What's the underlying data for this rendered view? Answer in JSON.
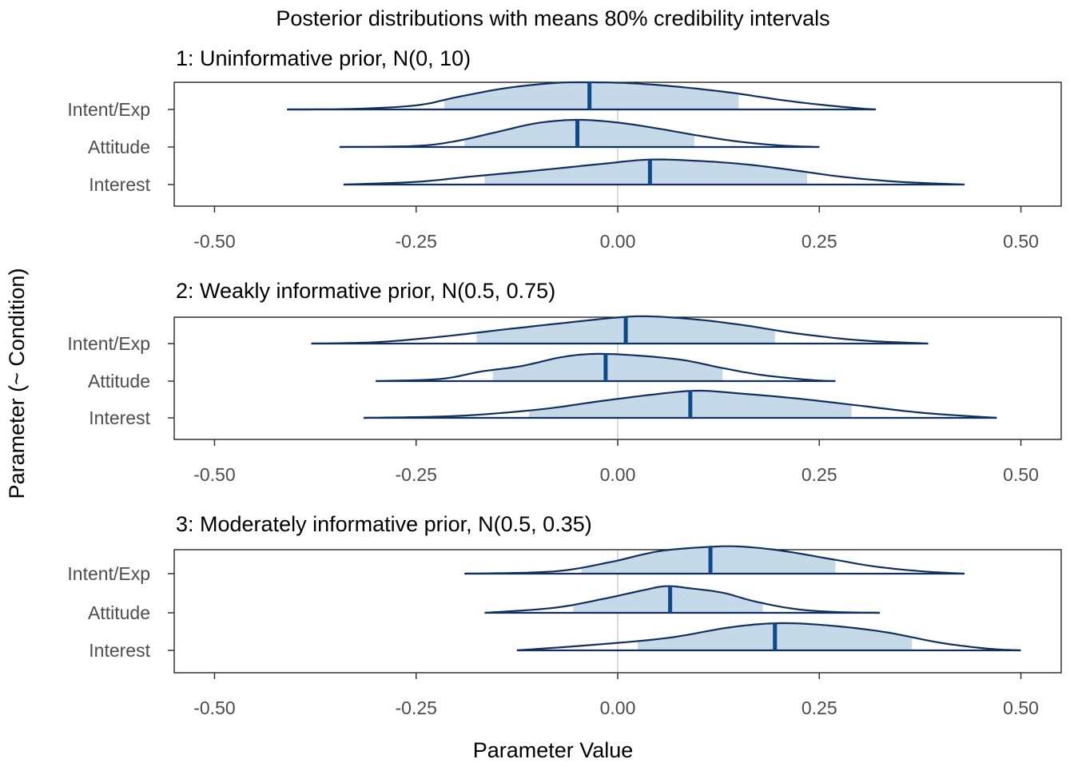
{
  "chart_data": {
    "type": "ridgeline",
    "title": "Posterior distributions with means 80% credibility intervals",
    "xlabel": "Parameter Value",
    "ylabel": "Parameter (~ Condition)",
    "xlim": [
      -0.55,
      0.55
    ],
    "xticks": [
      -0.5,
      -0.25,
      0.0,
      0.25,
      0.5
    ],
    "xtick_labels": [
      "-0.50",
      "-0.25",
      "0.00",
      "0.25",
      "0.50"
    ],
    "reference_line": 0.0,
    "colors": {
      "fill": "#c6d9e9",
      "outline": "#12305f",
      "mean": "#0c4a8c",
      "refline": "#dcdcdc"
    },
    "categories": [
      "Intent/Exp",
      "Attitude",
      "Interest"
    ],
    "panels": [
      {
        "title": "1: Uninformative prior, N(0, 10)",
        "series": [
          {
            "name": "Intent/Exp",
            "mean": -0.035,
            "ci80": [
              -0.215,
              0.15
            ],
            "range": [
              -0.41,
              0.32
            ],
            "density": [
              [
                -0.41,
                0.0
              ],
              [
                -0.33,
                0.02
              ],
              [
                -0.25,
                0.15
              ],
              [
                -0.2,
                0.45
              ],
              [
                -0.14,
                0.78
              ],
              [
                -0.08,
                0.97
              ],
              [
                -0.035,
                1.0
              ],
              [
                0.02,
                0.96
              ],
              [
                0.08,
                0.82
              ],
              [
                0.14,
                0.62
              ],
              [
                0.2,
                0.36
              ],
              [
                0.25,
                0.18
              ],
              [
                0.3,
                0.04
              ],
              [
                0.32,
                0.0
              ]
            ]
          },
          {
            "name": "Attitude",
            "mean": -0.05,
            "ci80": [
              -0.19,
              0.095
            ],
            "range": [
              -0.345,
              0.25
            ],
            "density": [
              [
                -0.345,
                0.0
              ],
              [
                -0.25,
                0.04
              ],
              [
                -0.2,
                0.22
              ],
              [
                -0.15,
                0.55
              ],
              [
                -0.1,
                0.88
              ],
              [
                -0.05,
                1.0
              ],
              [
                0.0,
                0.9
              ],
              [
                0.05,
                0.68
              ],
              [
                0.1,
                0.42
              ],
              [
                0.15,
                0.2
              ],
              [
                0.2,
                0.06
              ],
              [
                0.25,
                0.0
              ]
            ]
          },
          {
            "name": "Interest",
            "mean": 0.04,
            "ci80": [
              -0.165,
              0.235
            ],
            "range": [
              -0.34,
              0.43
            ],
            "density": [
              [
                -0.34,
                0.0
              ],
              [
                -0.25,
                0.1
              ],
              [
                -0.18,
                0.3
              ],
              [
                -0.1,
                0.52
              ],
              [
                -0.02,
                0.76
              ],
              [
                0.04,
                0.92
              ],
              [
                0.1,
                0.87
              ],
              [
                0.16,
                0.74
              ],
              [
                0.22,
                0.52
              ],
              [
                0.28,
                0.28
              ],
              [
                0.35,
                0.1
              ],
              [
                0.43,
                0.0
              ]
            ]
          }
        ]
      },
      {
        "title": "2: Weakly informative prior, N(0.5, 0.75)",
        "series": [
          {
            "name": "Intent/Exp",
            "mean": 0.01,
            "ci80": [
              -0.175,
              0.195
            ],
            "range": [
              -0.38,
              0.385
            ],
            "density": [
              [
                -0.38,
                0.0
              ],
              [
                -0.3,
                0.05
              ],
              [
                -0.22,
                0.25
              ],
              [
                -0.14,
                0.52
              ],
              [
                -0.06,
                0.78
              ],
              [
                0.0,
                0.96
              ],
              [
                0.04,
                1.0
              ],
              [
                0.1,
                0.88
              ],
              [
                0.16,
                0.66
              ],
              [
                0.22,
                0.38
              ],
              [
                0.3,
                0.12
              ],
              [
                0.385,
                0.0
              ]
            ]
          },
          {
            "name": "Attitude",
            "mean": -0.015,
            "ci80": [
              -0.155,
              0.13
            ],
            "range": [
              -0.3,
              0.27
            ],
            "density": [
              [
                -0.3,
                0.0
              ],
              [
                -0.22,
                0.08
              ],
              [
                -0.17,
                0.35
              ],
              [
                -0.12,
                0.55
              ],
              [
                -0.07,
                0.88
              ],
              [
                -0.03,
                1.0
              ],
              [
                0.02,
                0.95
              ],
              [
                0.08,
                0.78
              ],
              [
                0.13,
                0.48
              ],
              [
                0.18,
                0.22
              ],
              [
                0.24,
                0.04
              ],
              [
                0.27,
                0.0
              ]
            ]
          },
          {
            "name": "Interest",
            "mean": 0.09,
            "ci80": [
              -0.11,
              0.29
            ],
            "range": [
              -0.315,
              0.47
            ],
            "density": [
              [
                -0.315,
                0.0
              ],
              [
                -0.2,
                0.07
              ],
              [
                -0.1,
                0.3
              ],
              [
                -0.02,
                0.62
              ],
              [
                0.05,
                0.88
              ],
              [
                0.1,
                1.0
              ],
              [
                0.15,
                0.9
              ],
              [
                0.22,
                0.72
              ],
              [
                0.3,
                0.45
              ],
              [
                0.38,
                0.18
              ],
              [
                0.47,
                0.0
              ]
            ]
          }
        ]
      },
      {
        "title": "3: Moderately informative prior, N(0.5, 0.35)",
        "series": [
          {
            "name": "Intent/Exp",
            "mean": 0.115,
            "ci80": [
              -0.045,
              0.27
            ],
            "range": [
              -0.19,
              0.43
            ],
            "density": [
              [
                -0.19,
                0.0
              ],
              [
                -0.08,
                0.08
              ],
              [
                -0.01,
                0.42
              ],
              [
                0.05,
                0.82
              ],
              [
                0.11,
                0.98
              ],
              [
                0.15,
                1.0
              ],
              [
                0.2,
                0.86
              ],
              [
                0.26,
                0.56
              ],
              [
                0.32,
                0.26
              ],
              [
                0.38,
                0.08
              ],
              [
                0.43,
                0.0
              ]
            ]
          },
          {
            "name": "Attitude",
            "mean": 0.065,
            "ci80": [
              -0.055,
              0.18
            ],
            "range": [
              -0.165,
              0.325
            ],
            "density": [
              [
                -0.165,
                0.0
              ],
              [
                -0.08,
                0.18
              ],
              [
                -0.02,
                0.5
              ],
              [
                0.03,
                0.82
              ],
              [
                0.06,
                0.98
              ],
              [
                0.09,
                0.9
              ],
              [
                0.13,
                0.74
              ],
              [
                0.17,
                0.42
              ],
              [
                0.22,
                0.14
              ],
              [
                0.27,
                0.03
              ],
              [
                0.325,
                0.0
              ]
            ]
          },
          {
            "name": "Interest",
            "mean": 0.195,
            "ci80": [
              0.025,
              0.365
            ],
            "range": [
              -0.125,
              0.5
            ],
            "density": [
              [
                -0.125,
                0.0
              ],
              [
                -0.04,
                0.18
              ],
              [
                0.06,
                0.45
              ],
              [
                0.14,
                0.85
              ],
              [
                0.2,
                1.0
              ],
              [
                0.26,
                0.92
              ],
              [
                0.33,
                0.68
              ],
              [
                0.4,
                0.28
              ],
              [
                0.46,
                0.06
              ],
              [
                0.5,
                0.0
              ]
            ]
          }
        ]
      }
    ]
  }
}
